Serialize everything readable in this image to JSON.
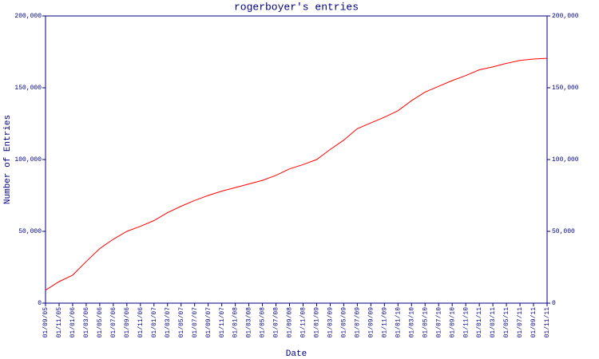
{
  "chart_data": {
    "type": "line",
    "title": "rogerboyer's entries",
    "y_label": "Number of Entries",
    "x_label": "Date",
    "categories": [
      "01/09/05",
      "01/11/05",
      "01/01/06",
      "01/03/06",
      "01/05/06",
      "01/07/06",
      "01/09/06",
      "01/11/06",
      "01/01/07",
      "01/03/07",
      "01/05/07",
      "01/07/07",
      "01/09/07",
      "01/11/07",
      "01/01/08",
      "01/03/08",
      "01/05/08",
      "01/07/08",
      "01/09/08",
      "01/11/08",
      "01/01/09",
      "01/03/09",
      "01/05/09",
      "01/07/09",
      "01/09/09",
      "01/11/09",
      "01/01/10",
      "01/03/10",
      "01/05/10",
      "01/07/10",
      "01/09/10",
      "01/11/10",
      "01/01/11",
      "01/03/11",
      "01/05/11",
      "01/07/11",
      "01/09/11",
      "01/11/11"
    ],
    "values": [
      9000,
      15000,
      19500,
      29000,
      38000,
      44500,
      50000,
      53500,
      57500,
      63000,
      67500,
      71500,
      75000,
      78000,
      80500,
      83000,
      85500,
      89000,
      93500,
      96500,
      100000,
      107000,
      113500,
      121500,
      125500,
      129500,
      134000,
      141000,
      147000,
      151000,
      155000,
      158500,
      162500,
      164500,
      167000,
      169000,
      170000,
      170500
    ],
    "color": "#ff0000",
    "axis_color": "#000080",
    "ylim": [
      0,
      200000
    ],
    "yticks": [
      0,
      {
        "value": 50000,
        "label": "50,000"
      },
      {
        "value": 100000,
        "label": "100,000"
      },
      {
        "value": 150000,
        "label": "150,000"
      },
      {
        "value": 200000,
        "label": "200,000"
      }
    ],
    "right_axis": true
  }
}
